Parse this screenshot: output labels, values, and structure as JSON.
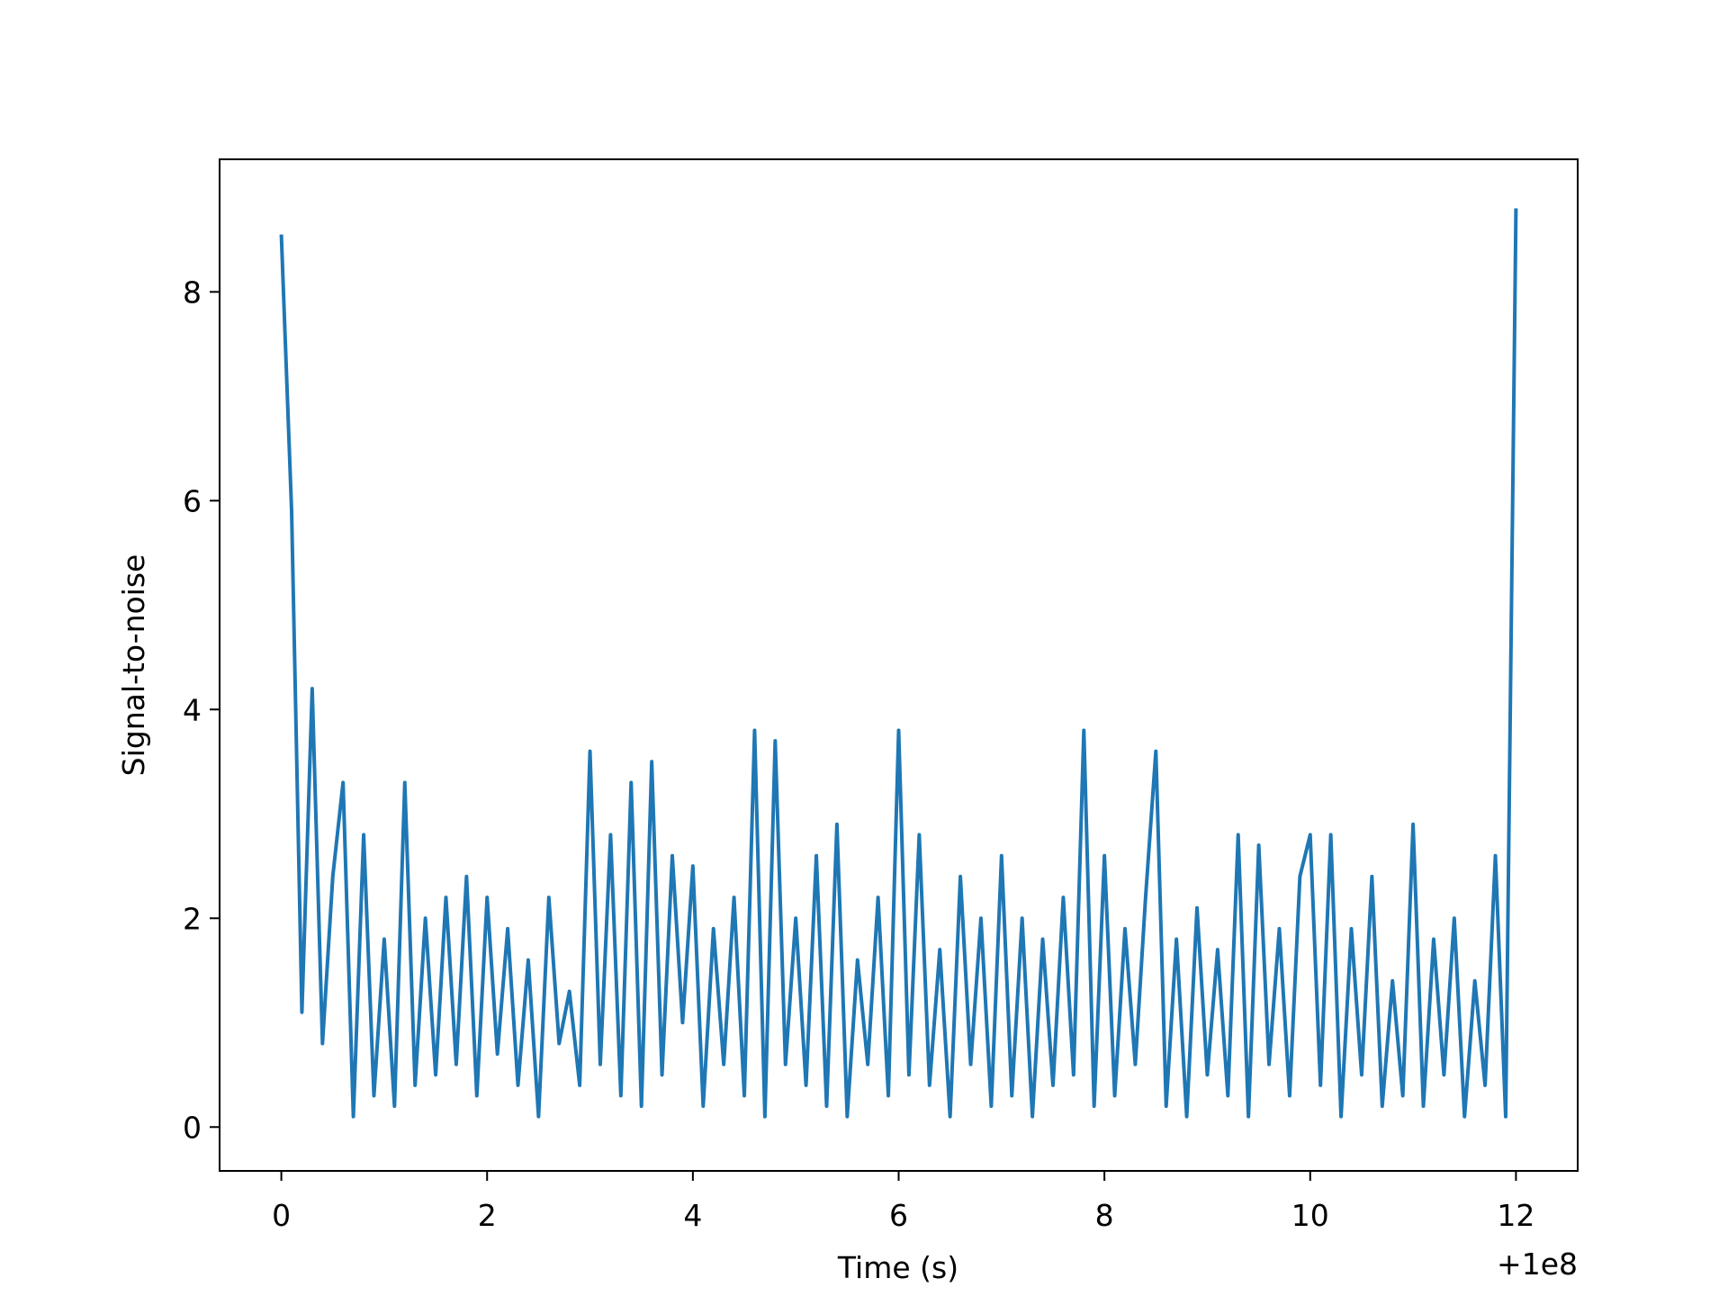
{
  "chart_data": {
    "type": "line",
    "x_label": "Time (s)",
    "y_label": "Signal-to-noise",
    "x_offset": "+1e8",
    "x": [
      0.0,
      0.1,
      0.2,
      0.3,
      0.4,
      0.5,
      0.6,
      0.7,
      0.8,
      0.9,
      1.0,
      1.1,
      1.2,
      1.3,
      1.4,
      1.5,
      1.6,
      1.7,
      1.8,
      1.9,
      2.0,
      2.1,
      2.2,
      2.3,
      2.4,
      2.5,
      2.6,
      2.7,
      2.8,
      2.9,
      3.0,
      3.1,
      3.2,
      3.3,
      3.4,
      3.5,
      3.6,
      3.7,
      3.8,
      3.9,
      4.0,
      4.1,
      4.2,
      4.3,
      4.4,
      4.5,
      4.6,
      4.7,
      4.8,
      4.9,
      5.0,
      5.1,
      5.2,
      5.3,
      5.4,
      5.5,
      5.6,
      5.7,
      5.8,
      5.9,
      6.0,
      6.1,
      6.2,
      6.3,
      6.4,
      6.5,
      6.6,
      6.7,
      6.8,
      6.9,
      7.0,
      7.1,
      7.2,
      7.3,
      7.4,
      7.5,
      7.6,
      7.7,
      7.8,
      7.9,
      8.0,
      8.1,
      8.2,
      8.3,
      8.4,
      8.5,
      8.6,
      8.7,
      8.8,
      8.9,
      9.0,
      9.1,
      9.2,
      9.3,
      9.4,
      9.5,
      9.6,
      9.7,
      9.8,
      9.9,
      10.0,
      10.1,
      10.2,
      10.3,
      10.4,
      10.5,
      10.6,
      10.7,
      10.8,
      10.9,
      11.0,
      11.1,
      11.2,
      11.3,
      11.4,
      11.5,
      11.6,
      11.7,
      11.8,
      11.9,
      12.0
    ],
    "series": [
      {
        "color": "#1f77b4",
        "values": [
          8.55,
          5.9,
          1.1,
          4.2,
          0.8,
          2.4,
          3.3,
          0.1,
          2.8,
          0.3,
          1.8,
          0.2,
          3.3,
          0.4,
          2.0,
          0.5,
          2.2,
          0.6,
          2.4,
          0.3,
          2.2,
          0.7,
          1.9,
          0.4,
          1.6,
          0.1,
          2.2,
          0.8,
          1.3,
          0.4,
          3.6,
          0.6,
          2.8,
          0.3,
          3.3,
          0.2,
          3.5,
          0.5,
          2.6,
          1.0,
          2.5,
          0.2,
          1.9,
          0.6,
          2.2,
          0.3,
          3.8,
          0.1,
          3.7,
          0.6,
          2.0,
          0.4,
          2.6,
          0.2,
          2.9,
          0.1,
          1.6,
          0.6,
          2.2,
          0.3,
          3.8,
          0.5,
          2.8,
          0.4,
          1.7,
          0.1,
          2.4,
          0.6,
          2.0,
          0.2,
          2.6,
          0.3,
          2.0,
          0.1,
          1.8,
          0.4,
          2.2,
          0.5,
          3.8,
          0.2,
          2.6,
          0.3,
          1.9,
          0.6,
          2.2,
          3.6,
          0.2,
          1.8,
          0.1,
          2.1,
          0.5,
          1.7,
          0.3,
          2.8,
          0.1,
          2.7,
          0.6,
          1.9,
          0.3,
          2.4,
          2.8,
          0.4,
          2.8,
          0.1,
          1.9,
          0.5,
          2.4,
          0.2,
          1.4,
          0.3,
          2.9,
          0.2,
          1.8,
          0.5,
          2.0,
          0.1,
          1.4,
          0.4,
          2.6,
          0.1,
          8.8
        ]
      }
    ],
    "xlim": [
      -0.6,
      12.6
    ],
    "ylim": [
      -0.42,
      9.27
    ],
    "xticks": [
      0,
      2,
      4,
      6,
      8,
      10,
      12
    ],
    "yticks": [
      0,
      2,
      4,
      6,
      8
    ],
    "grid": false
  }
}
